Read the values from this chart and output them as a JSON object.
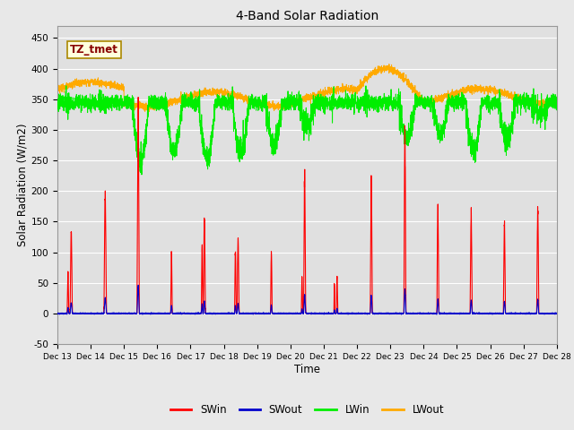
{
  "title": "4-Band Solar Radiation",
  "xlabel": "Time",
  "ylabel": "Solar Radiation (W/m2)",
  "ylim": [
    -50,
    470
  ],
  "xlim": [
    0,
    15.0
  ],
  "legend_labels": [
    "SWin",
    "SWout",
    "LWin",
    "LWout"
  ],
  "legend_colors": [
    "#ff0000",
    "#0000cc",
    "#00ee00",
    "#ffaa00"
  ],
  "annotation": "TZ_tmet",
  "xtick_labels": [
    "Dec 13",
    "Dec 14",
    "Dec 15",
    "Dec 16",
    "Dec 17",
    "Dec 18",
    "Dec 19",
    "Dec 20",
    "Dec 21",
    "Dec 22",
    "Dec 23",
    "Dec 24",
    "Dec 25",
    "Dec 26",
    "Dec 27",
    "Dec 28"
  ],
  "ytick_values": [
    -50,
    0,
    50,
    100,
    150,
    200,
    250,
    300,
    350,
    400,
    450
  ],
  "fig_bg_color": "#e8e8e8",
  "plot_bg_color": "#e0e0e0",
  "grid_color": "#ffffff"
}
